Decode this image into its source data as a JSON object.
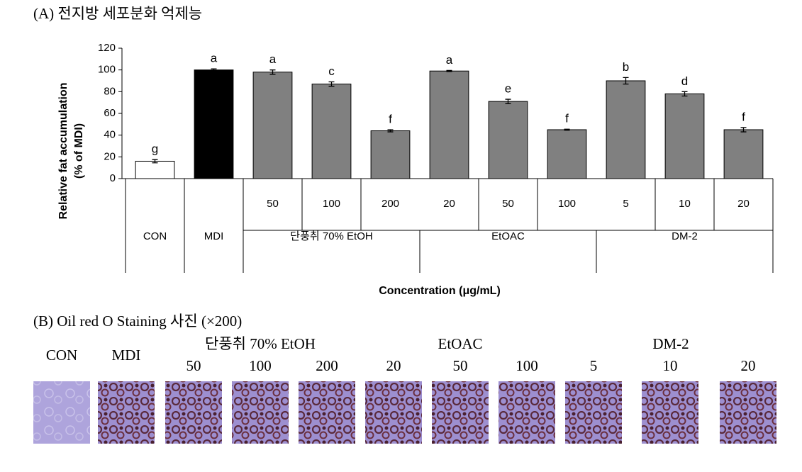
{
  "chart_data": {
    "type": "bar",
    "title": "(A) 전지방 세포분화 억제능",
    "ylabel": [
      "Relative fat accumulation",
      "(% of MDI)"
    ],
    "xlabel": "Concentration (μg/mL)",
    "groups": [
      {
        "label": "CON",
        "categories": [
          null
        ]
      },
      {
        "label": "MDI",
        "categories": [
          null
        ]
      },
      {
        "label": "단풍취 70% EtOH",
        "categories": [
          "50",
          "100",
          "200"
        ]
      },
      {
        "label": "EtOAC",
        "categories": [
          "20",
          "50",
          "100"
        ]
      },
      {
        "label": "DM-2",
        "categories": [
          "5",
          "10",
          "20"
        ]
      }
    ],
    "values": [
      16,
      100,
      98,
      87,
      44,
      99,
      71,
      45,
      90,
      78,
      45
    ],
    "errors": [
      1.5,
      1,
      2,
      2,
      1,
      0.5,
      2,
      0.5,
      3,
      2,
      2
    ],
    "letters": [
      "g",
      "a",
      "a",
      "c",
      "f",
      "a",
      "e",
      "f",
      "b",
      "d",
      "f"
    ],
    "colors": [
      "#ffffff",
      "#000000",
      "#808080",
      "#808080",
      "#808080",
      "#808080",
      "#808080",
      "#808080",
      "#808080",
      "#808080",
      "#808080"
    ],
    "ylim": [
      0,
      120
    ],
    "yticks": [
      0,
      20,
      40,
      60,
      80,
      100,
      120
    ]
  },
  "panel_b": {
    "title": "(B) Oil red O Staining 사진 (×200)"
  }
}
